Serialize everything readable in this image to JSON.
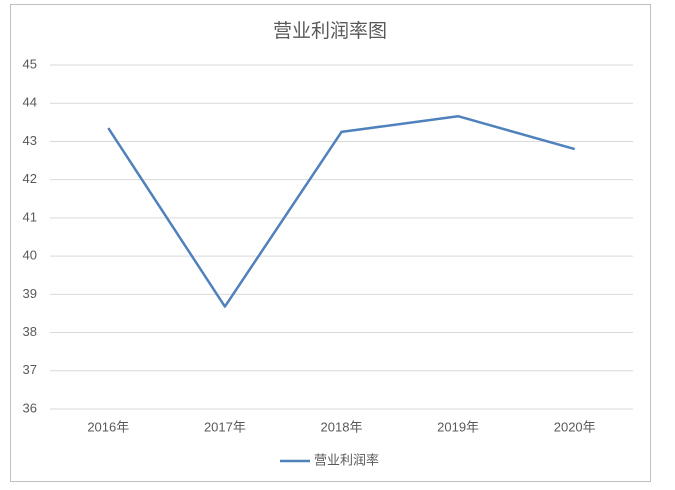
{
  "chart_data": {
    "type": "line",
    "title": "营业利润率图",
    "categories": [
      "2016年",
      "2017年",
      "2018年",
      "2019年",
      "2020年"
    ],
    "series": [
      {
        "name": "营业利润率",
        "color": "#4f81bd",
        "values": [
          43.35,
          38.68,
          43.25,
          43.66,
          42.8
        ]
      }
    ],
    "ylim": [
      36,
      45
    ],
    "yticks": [
      36,
      37,
      38,
      39,
      40,
      41,
      42,
      43,
      44,
      45
    ],
    "grid": true,
    "legend": "bottom"
  }
}
